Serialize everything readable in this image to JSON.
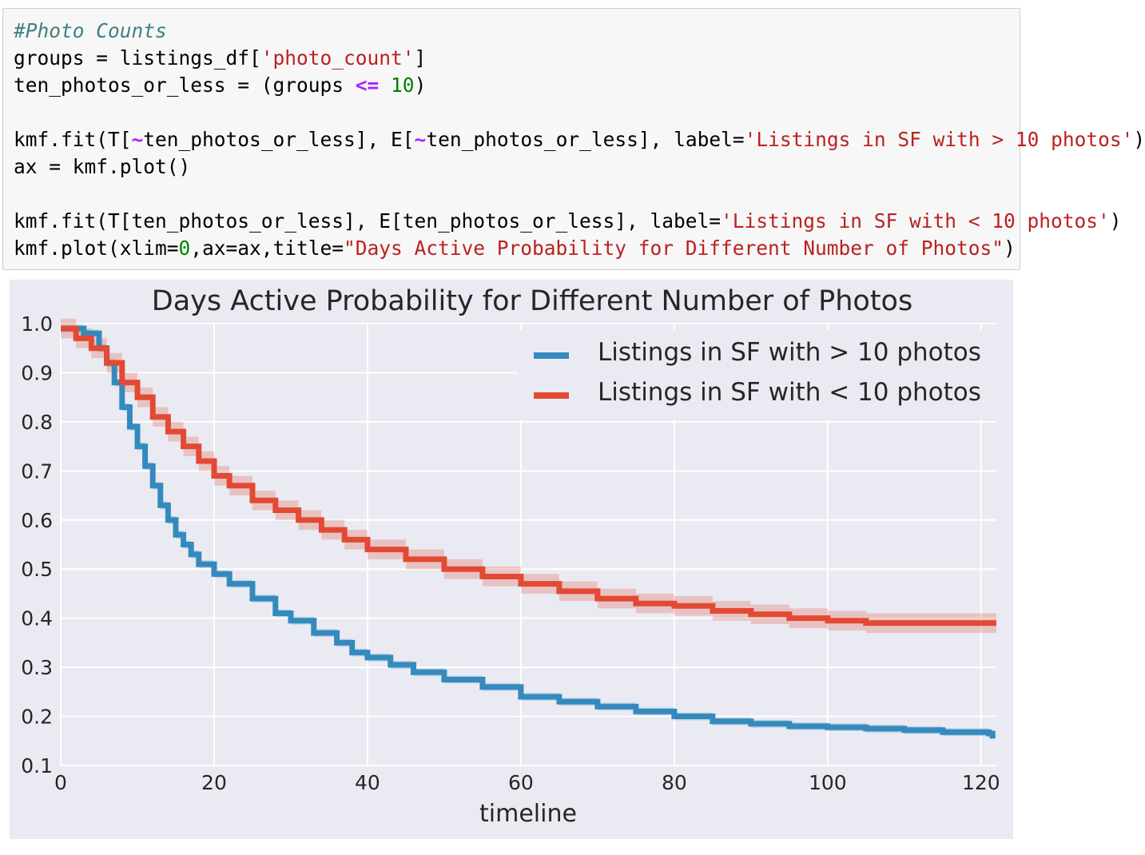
{
  "code": {
    "lines": [
      [
        {
          "t": "#Photo Counts",
          "c": "comment"
        }
      ],
      [
        {
          "t": "groups = listings_df[",
          "c": ""
        },
        {
          "t": "'photo_count'",
          "c": "string"
        },
        {
          "t": "]",
          "c": ""
        }
      ],
      [
        {
          "t": "ten_photos_or_less = (groups ",
          "c": ""
        },
        {
          "t": "<=",
          "c": "op"
        },
        {
          "t": " ",
          "c": ""
        },
        {
          "t": "10",
          "c": "num"
        },
        {
          "t": ")",
          "c": ""
        }
      ],
      [],
      [
        {
          "t": "kmf.fit(T[",
          "c": ""
        },
        {
          "t": "~",
          "c": "op"
        },
        {
          "t": "ten_photos_or_less], E[",
          "c": ""
        },
        {
          "t": "~",
          "c": "op"
        },
        {
          "t": "ten_photos_or_less], label=",
          "c": ""
        },
        {
          "t": "'Listings in SF with > 10 photos'",
          "c": "string"
        },
        {
          "t": ")",
          "c": ""
        }
      ],
      [
        {
          "t": "ax = kmf.plot()",
          "c": ""
        }
      ],
      [],
      [
        {
          "t": "kmf.fit(T[ten_photos_or_less], E[ten_photos_or_less], label=",
          "c": ""
        },
        {
          "t": "'Listings in SF with < 10 photos'",
          "c": "string"
        },
        {
          "t": ")",
          "c": ""
        }
      ],
      [
        {
          "t": "kmf.plot(xlim=",
          "c": ""
        },
        {
          "t": "0",
          "c": "num"
        },
        {
          "t": ",ax=ax,title=",
          "c": ""
        },
        {
          "t": "\"Days Active Probability for Different Number of Photos\"",
          "c": "string"
        },
        {
          "t": ")",
          "c": ""
        }
      ]
    ]
  },
  "chart_data": {
    "type": "line",
    "title": "Days Active Probability for Different Number of Photos",
    "xlabel": "timeline",
    "ylabel": "",
    "xlim": [
      0,
      122
    ],
    "ylim": [
      0.1,
      1.0
    ],
    "xticks": [
      0,
      20,
      40,
      60,
      80,
      100,
      120
    ],
    "yticks": [
      0.1,
      0.2,
      0.3,
      0.4,
      0.5,
      0.6,
      0.7,
      0.8,
      0.9,
      1.0
    ],
    "grid": true,
    "legend_position": "top-right",
    "series": [
      {
        "name": "Listings in SF with > 10 photos",
        "color": "#348abd",
        "points": [
          [
            0,
            0.99
          ],
          [
            3,
            0.98
          ],
          [
            5,
            0.95
          ],
          [
            6,
            0.92
          ],
          [
            7,
            0.88
          ],
          [
            8,
            0.83
          ],
          [
            9,
            0.79
          ],
          [
            10,
            0.75
          ],
          [
            11,
            0.71
          ],
          [
            12,
            0.67
          ],
          [
            13,
            0.63
          ],
          [
            14,
            0.6
          ],
          [
            15,
            0.57
          ],
          [
            16,
            0.55
          ],
          [
            17,
            0.53
          ],
          [
            18,
            0.51
          ],
          [
            20,
            0.49
          ],
          [
            22,
            0.47
          ],
          [
            25,
            0.44
          ],
          [
            28,
            0.41
          ],
          [
            30,
            0.395
          ],
          [
            33,
            0.37
          ],
          [
            36,
            0.35
          ],
          [
            38,
            0.33
          ],
          [
            40,
            0.32
          ],
          [
            43,
            0.305
          ],
          [
            46,
            0.29
          ],
          [
            50,
            0.275
          ],
          [
            55,
            0.26
          ],
          [
            60,
            0.24
          ],
          [
            65,
            0.23
          ],
          [
            70,
            0.22
          ],
          [
            75,
            0.21
          ],
          [
            80,
            0.2
          ],
          [
            85,
            0.19
          ],
          [
            90,
            0.185
          ],
          [
            95,
            0.18
          ],
          [
            100,
            0.178
          ],
          [
            105,
            0.175
          ],
          [
            110,
            0.172
          ],
          [
            115,
            0.168
          ],
          [
            121,
            0.165
          ],
          [
            121.5,
            0.155
          ]
        ],
        "ci_halfwidth": 0.008
      },
      {
        "name": "Listings in SF with < 10 photos",
        "color": "#e24a33",
        "points": [
          [
            0,
            0.99
          ],
          [
            2,
            0.97
          ],
          [
            4,
            0.95
          ],
          [
            6,
            0.92
          ],
          [
            8,
            0.88
          ],
          [
            10,
            0.85
          ],
          [
            12,
            0.81
          ],
          [
            14,
            0.78
          ],
          [
            16,
            0.75
          ],
          [
            18,
            0.72
          ],
          [
            20,
            0.69
          ],
          [
            22,
            0.67
          ],
          [
            25,
            0.64
          ],
          [
            28,
            0.62
          ],
          [
            31,
            0.6
          ],
          [
            34,
            0.58
          ],
          [
            37,
            0.56
          ],
          [
            40,
            0.54
          ],
          [
            45,
            0.52
          ],
          [
            50,
            0.5
          ],
          [
            55,
            0.485
          ],
          [
            60,
            0.47
          ],
          [
            65,
            0.455
          ],
          [
            70,
            0.44
          ],
          [
            75,
            0.43
          ],
          [
            80,
            0.425
          ],
          [
            85,
            0.415
          ],
          [
            90,
            0.408
          ],
          [
            95,
            0.4
          ],
          [
            100,
            0.395
          ],
          [
            105,
            0.39
          ],
          [
            110,
            0.39
          ],
          [
            115,
            0.39
          ],
          [
            122,
            0.39
          ]
        ],
        "ci_halfwidth": 0.02
      }
    ]
  }
}
